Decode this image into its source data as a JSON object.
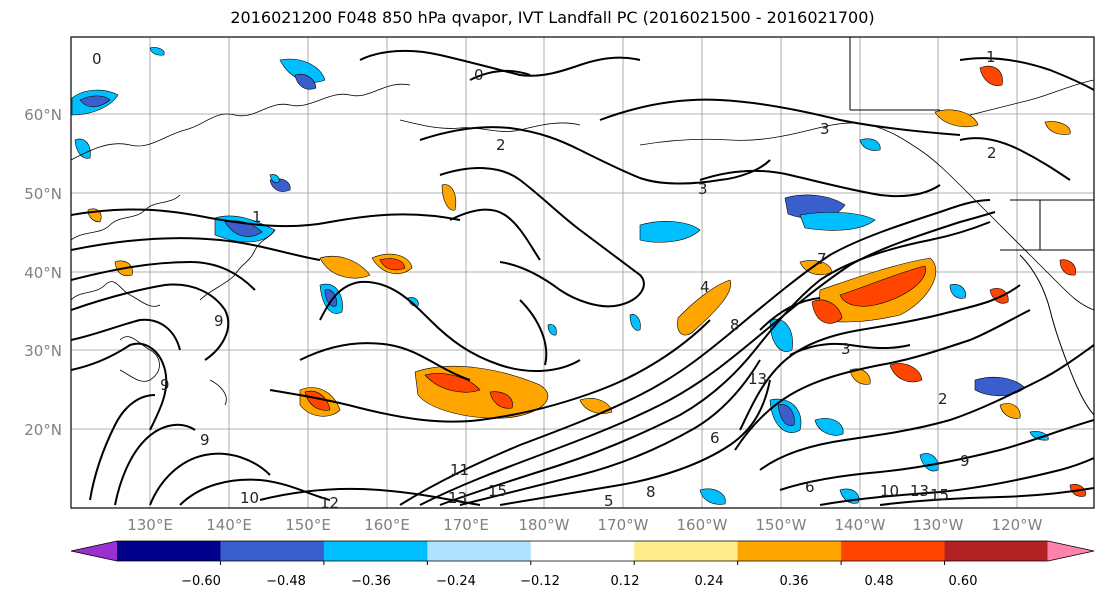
{
  "title": "2016021200 F048 850 hPa qvapor, IVT Landfall PC (2016021500 - 2016021700)",
  "lat_labels": [
    "60°N",
    "50°N",
    "40°N",
    "30°N",
    "20°N"
  ],
  "lon_labels": [
    "130°E",
    "140°E",
    "150°E",
    "160°E",
    "170°E",
    "180°W",
    "170°W",
    "160°W",
    "150°W",
    "140°W",
    "130°W",
    "120°W"
  ],
  "colorbar": {
    "tick_labels": [
      "−0.60",
      "−0.48",
      "−0.36",
      "−0.24",
      "−0.12",
      "0.12",
      "0.24",
      "0.36",
      "0.48",
      "0.60"
    ],
    "colors": [
      "#9b30d0",
      "#00008b",
      "#3a5fcd",
      "#00bfff",
      "#b0e2ff",
      "#ffffff",
      "#ffec8b",
      "#ffa500",
      "#ff4500",
      "#b22222",
      "#ff82ab"
    ]
  },
  "contour_labels": [
    "0",
    "0",
    "1",
    "1",
    "2",
    "2",
    "2",
    "3",
    "3",
    "3",
    "4",
    "5",
    "6",
    "6",
    "7",
    "8",
    "8",
    "9",
    "9",
    "9",
    "9",
    "10",
    "10",
    "11",
    "12",
    "13",
    "13",
    "13",
    "15",
    "15"
  ]
}
